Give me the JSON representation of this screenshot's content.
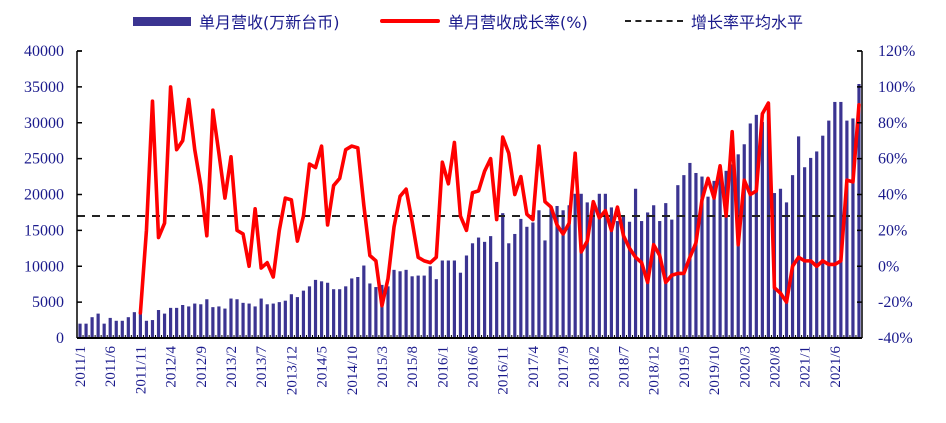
{
  "chart_data": {
    "type": "bar+line",
    "title": "",
    "legend": [
      {
        "label": "单月营收(万新台币)",
        "type": "bar",
        "color": "#3b3491"
      },
      {
        "label": "单月营收成长率(%)",
        "type": "line",
        "color": "#ff0000"
      },
      {
        "label": "增长率平均水平",
        "type": "dashed-line",
        "color": "#222222"
      }
    ],
    "x_tick_labels": [
      "2011/1",
      "2011/6",
      "2011/11",
      "2012/4",
      "2012/9",
      "2013/2",
      "2013/7",
      "2013/12",
      "2014/5",
      "2014/10",
      "2015/3",
      "2015/8",
      "2016/1",
      "2016/6",
      "2016/11",
      "2017/4",
      "2017/9",
      "2018/2",
      "2018/7",
      "2018/12",
      "2019/5",
      "2019/10",
      "2020/3",
      "2020/8",
      "2021/1",
      "2021/6"
    ],
    "left_axis": {
      "label": "单月营收(万新台币)",
      "min": 0,
      "max": 40000,
      "ticks": [
        "0",
        "5000",
        "10000",
        "15000",
        "20000",
        "25000",
        "30000",
        "35000",
        "40000"
      ]
    },
    "right_axis": {
      "label": "成长率",
      "min": -40,
      "max": 120,
      "ticks": [
        "-40%",
        "-20%",
        "0%",
        "20%",
        "40%",
        "60%",
        "80%",
        "100%",
        "120%"
      ]
    },
    "average_growth_rate": 28,
    "start_month": "2011/1",
    "series": [
      {
        "name": "单月营收(万新台币)",
        "type": "bar",
        "values": [
          2000,
          2000,
          2900,
          3400,
          2000,
          2800,
          2400,
          2400,
          2900,
          3600,
          3600,
          2400,
          2500,
          3900,
          3400,
          4200,
          4200,
          4600,
          4400,
          4800,
          4700,
          5400,
          4300,
          4400,
          4100,
          5500,
          5400,
          4900,
          4800,
          4400,
          5500,
          4700,
          4800,
          5000,
          5200,
          6100,
          5700,
          6600,
          7200,
          8100,
          7900,
          7700,
          6800,
          6800,
          7200,
          8300,
          8500,
          10100,
          7600,
          7100,
          7400,
          7200,
          9500,
          9300,
          9500,
          8600,
          8700,
          8700,
          10000,
          8200,
          10800,
          10800,
          10800,
          9100,
          11500,
          13200,
          14000,
          13400,
          14200,
          10600,
          17400,
          13200,
          14500,
          16600,
          15500,
          16100,
          17800,
          13600,
          18200,
          18400,
          17800,
          18500,
          20100,
          20100,
          18900,
          18600,
          20100,
          20100,
          18200,
          16300,
          17000,
          16200,
          20800,
          16300,
          17500,
          18500,
          16300,
          18800,
          16500,
          21300,
          22700,
          24400,
          23000,
          22500,
          19700,
          21900,
          22800,
          23300,
          24200,
          25600,
          27000,
          29900,
          31100,
          30100,
          32000,
          20200,
          20800,
          18900,
          22700,
          28100,
          23800,
          25100,
          26000,
          28200,
          30300,
          32900,
          32900,
          30300,
          30600,
          35400
        ]
      },
      {
        "name": "单月营收成长率(%)",
        "type": "line",
        "start_index": 10,
        "values": [
          -26,
          20,
          92,
          16,
          24,
          100,
          65,
          70,
          93,
          65,
          45,
          17,
          87,
          63,
          38,
          61,
          20,
          18,
          0,
          32,
          -1,
          2,
          -6,
          20,
          38,
          37,
          14,
          28,
          57,
          55,
          67,
          23,
          45,
          49,
          65,
          67,
          66,
          34,
          6,
          3,
          -22,
          -7,
          22,
          39,
          43,
          25,
          5,
          3,
          2,
          5,
          58,
          46,
          69,
          28,
          20,
          41,
          42,
          53,
          60,
          26,
          72,
          63,
          40,
          50,
          29,
          26,
          67,
          36,
          33,
          23,
          18,
          24,
          63,
          8,
          14,
          36,
          27,
          31,
          20,
          33,
          17,
          10,
          5,
          2,
          -9,
          12,
          6,
          -9,
          -5,
          -4,
          -4,
          5,
          13,
          37,
          49,
          38,
          56,
          28,
          75,
          12,
          48,
          40,
          42,
          85,
          91,
          -12,
          -15,
          -20,
          0,
          5,
          3,
          3,
          0,
          3,
          1,
          1,
          3,
          48,
          47,
          90
        ]
      },
      {
        "name": "增长率平均水平",
        "type": "dashed-line",
        "value": 28
      }
    ],
    "colors": {
      "bar": "#3b3491",
      "line": "#ff0000",
      "dash": "#222222",
      "axis": "#000000",
      "tick_text": "#1a1a8c"
    }
  },
  "legend": {
    "bar_label": "单月营收(万新台币)",
    "line_label": "单月营收成长率(%)",
    "dash_label": "增长率平均水平"
  }
}
